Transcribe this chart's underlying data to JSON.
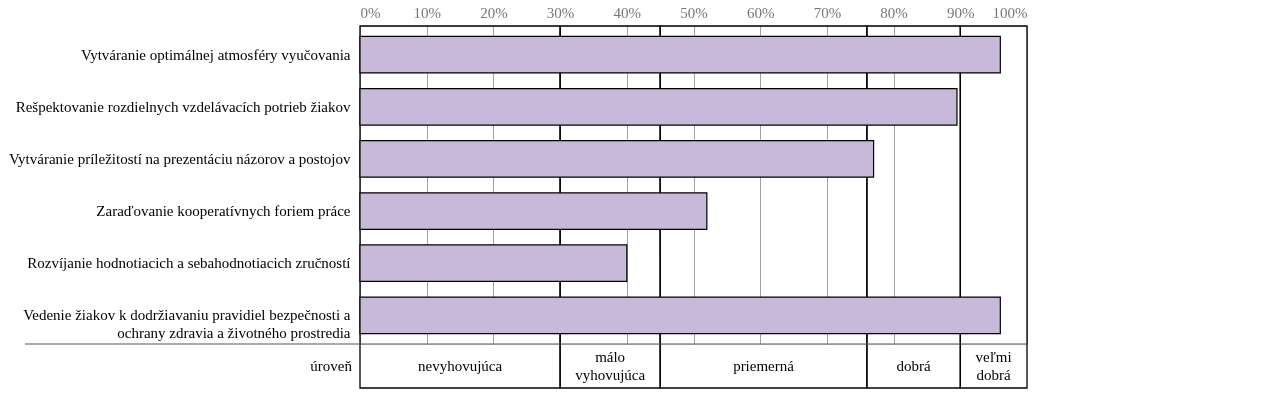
{
  "chart_data": {
    "type": "bar",
    "orientation": "horizontal",
    "categories": [
      "Vytváranie optimálnej atmosféry vyučovania",
      "Rešpektovanie rozdielnych vzdelávacích potrieb žiakov",
      "Vytváranie príležitostí na prezentáciu názorov a postojov",
      "Zaraďovanie kooperatívnych foriem práce",
      "Rozvíjanie hodnotiacich a sebahodnotiacich zručností",
      "Vedenie žiakov k dodržiavaniu pravidiel bezpečnosti a ochrany zdravia a životného prostredia"
    ],
    "values": [
      96,
      89.5,
      77,
      52,
      40,
      96
    ],
    "color": "#c8b9da",
    "xlim": [
      0,
      100
    ],
    "xticks": [
      {
        "value": 0,
        "label": "0%"
      },
      {
        "value": 10,
        "label": "10%"
      },
      {
        "value": 20,
        "label": "20%"
      },
      {
        "value": 30,
        "label": "30%"
      },
      {
        "value": 40,
        "label": "40%"
      },
      {
        "value": 50,
        "label": "50%"
      },
      {
        "value": 60,
        "label": "60%"
      },
      {
        "value": 70,
        "label": "70%"
      },
      {
        "value": 80,
        "label": "80%"
      },
      {
        "value": 90,
        "label": "90%"
      },
      {
        "value": 100,
        "label": "100%"
      }
    ],
    "grid": "x",
    "bands": [
      {
        "axis": "x",
        "from": 0,
        "to": 30,
        "label": "nevyhovujúca"
      },
      {
        "axis": "x",
        "from": 30,
        "to": 45,
        "label": "málo vyhovujúca"
      },
      {
        "axis": "x",
        "from": 45,
        "to": 76,
        "label": "priemerná"
      },
      {
        "axis": "x",
        "from": 76,
        "to": 90,
        "label": "dobrá"
      },
      {
        "axis": "x",
        "from": 90,
        "to": 100,
        "label": "veľmi dobrá"
      }
    ],
    "annotations": [
      "úroveň"
    ]
  }
}
